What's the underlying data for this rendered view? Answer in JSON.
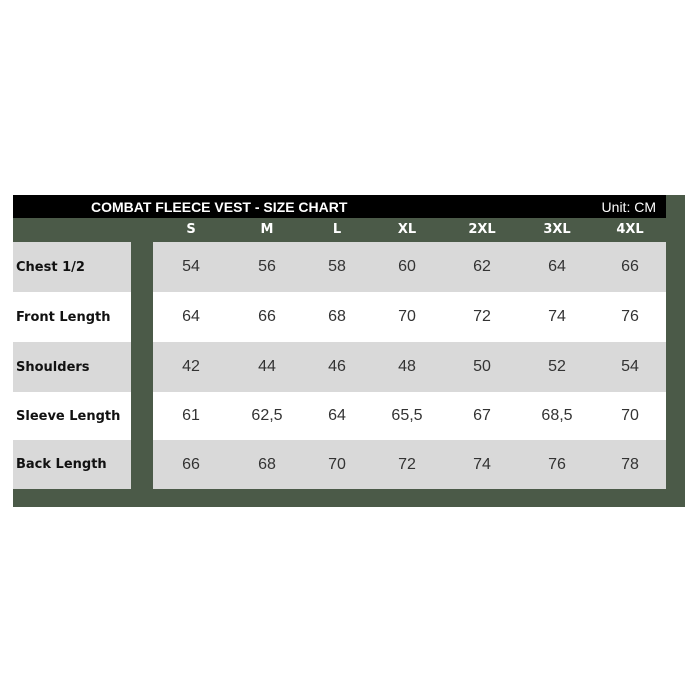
{
  "title": "COMBAT FLEECE VEST - SIZE CHART",
  "unit": "Unit: CM",
  "sizes": [
    "S",
    "M",
    "L",
    "XL",
    "2XL",
    "3XL",
    "4XL"
  ],
  "rows": [
    {
      "label": "Chest 1/2",
      "values": [
        "54",
        "56",
        "58",
        "60",
        "62",
        "64",
        "66"
      ]
    },
    {
      "label": "Front Length",
      "values": [
        "64",
        "66",
        "68",
        "70",
        "72",
        "74",
        "76"
      ]
    },
    {
      "label": "Shoulders",
      "values": [
        "42",
        "44",
        "46",
        "48",
        "50",
        "52",
        "54"
      ]
    },
    {
      "label": "Sleeve Length",
      "values": [
        "61",
        "62,5",
        "64",
        "65,5",
        "67",
        "68,5",
        "70"
      ]
    },
    {
      "label": "Back Length",
      "values": [
        "66",
        "68",
        "70",
        "72",
        "74",
        "76",
        "78"
      ]
    }
  ],
  "colors": {
    "frame": "#4b5a48",
    "header": "#000000",
    "row_alt": "#d9d9d9"
  }
}
